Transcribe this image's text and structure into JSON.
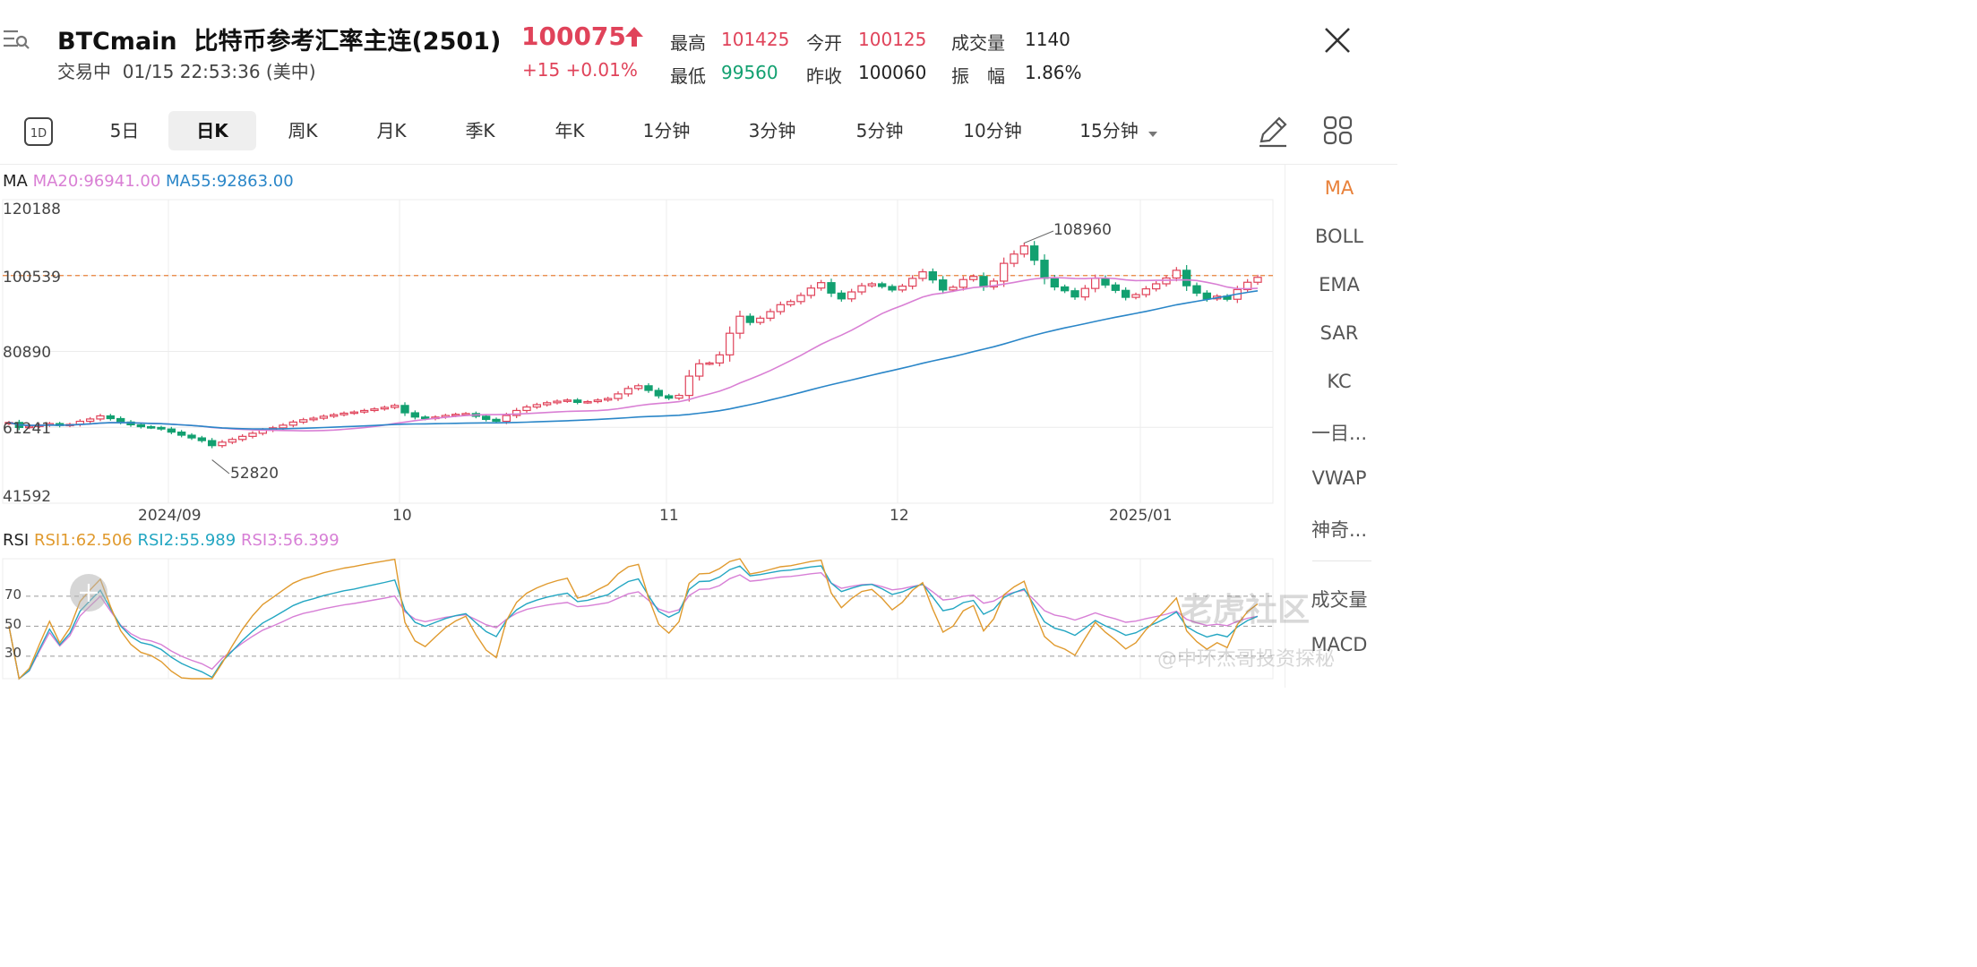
{
  "header": {
    "symbol": "BTCmain",
    "name": "比特币参考汇率主连(2501)",
    "price": "100075",
    "status": "交易中",
    "datetime": "01/15 22:53:36 (美中)",
    "change": "+15 +0.01%",
    "stats": {
      "high_label": "最高",
      "high": "101425",
      "open_label": "今开",
      "open": "100125",
      "volume_label": "成交量",
      "volume": "1140",
      "low_label": "最低",
      "low": "99560",
      "prev_close_label": "昨收",
      "prev_close": "100060",
      "amplitude_label": "振　幅",
      "amplitude": "1.86%"
    }
  },
  "tabs": [
    {
      "label": "1D",
      "icon": "calendar-1d-icon"
    },
    {
      "label": "5日"
    },
    {
      "label": "日K",
      "active": true
    },
    {
      "label": "周K"
    },
    {
      "label": "月K"
    },
    {
      "label": "季K"
    },
    {
      "label": "年K"
    },
    {
      "label": "1分钟"
    },
    {
      "label": "3分钟"
    },
    {
      "label": "5分钟"
    },
    {
      "label": "10分钟"
    },
    {
      "label": "15分钟"
    }
  ],
  "indicators_side": [
    "MA",
    "BOLL",
    "EMA",
    "SAR",
    "KC",
    "一目...",
    "VWAP",
    "神奇...",
    "成交量",
    "MACD"
  ],
  "ma_legend": {
    "prefix": "MA",
    "ma20": "MA20:96941.00",
    "ma55": "MA55:92863.00"
  },
  "rsi_legend": {
    "prefix": "RSI",
    "rsi1": "RSI1:62.506",
    "rsi2": "RSI2:55.989",
    "rsi3": "RSI3:56.399"
  },
  "price_axis": [
    "120188",
    "100539",
    "80890",
    "61241",
    "41592"
  ],
  "time_axis": [
    "2024/09",
    "10",
    "11",
    "12",
    "2025/01"
  ],
  "rsi_axis": [
    "70",
    "50",
    "30"
  ],
  "annotations": {
    "high_mark": "108960",
    "low_mark": "52820"
  },
  "watermark": {
    "brand": "老虎社区",
    "author": "@中环杰哥投资探秘"
  },
  "colors": {
    "up": "#e0435a",
    "down": "#12a070",
    "ma20": "#d97fd4",
    "ma55": "#2a86c8",
    "rsi1": "#e09a2e",
    "rsi2": "#23a6c2",
    "rsi3": "#d77fd6",
    "accent": "#e8813a"
  },
  "chart_data": [
    {
      "type": "candlestick",
      "title": "",
      "ylim": [
        41592,
        120188
      ],
      "y_ticks": [
        120188,
        100539,
        80890,
        61241,
        41592
      ],
      "x_ticks": [
        "2024/09",
        "10",
        "11",
        "12",
        "2025/01"
      ],
      "current_price_line": 100539,
      "closes": [
        62500,
        61200,
        61500,
        61800,
        62200,
        61700,
        62000,
        62800,
        63400,
        64200,
        63500,
        62600,
        61900,
        61400,
        61200,
        60800,
        60000,
        59200,
        58500,
        57800,
        56500,
        57400,
        58100,
        58900,
        59700,
        60500,
        61100,
        61800,
        62600,
        63200,
        63600,
        64100,
        64500,
        64900,
        65200,
        65600,
        66000,
        66400,
        66900,
        65000,
        63900,
        63500,
        63900,
        64300,
        64600,
        64800,
        64100,
        63300,
        62800,
        64300,
        65600,
        66500,
        67100,
        67600,
        68000,
        68300,
        67700,
        67900,
        68300,
        68700,
        69900,
        71300,
        72000,
        70800,
        69400,
        68800,
        69500,
        74500,
        77700,
        77900,
        80000,
        85600,
        90000,
        88400,
        89500,
        91200,
        93000,
        93800,
        95400,
        97300,
        98700,
        96000,
        94500,
        96300,
        97900,
        98400,
        97700,
        96800,
        97800,
        99800,
        101500,
        99400,
        96800,
        97500,
        99500,
        100300,
        97600,
        99100,
        103700,
        106100,
        108200,
        104500,
        99800,
        97600,
        96600,
        95000,
        97200,
        99800,
        98100,
        96700,
        94900,
        95600,
        97100,
        98400,
        99900,
        101900,
        97900,
        96000,
        94500,
        95200,
        94400,
        96900,
        98800,
        100075
      ],
      "x_start": "2024-08-14",
      "marked_high": 108960,
      "marked_low": 52820,
      "series": [
        {
          "name": "MA20",
          "last_value": 96941.0
        },
        {
          "name": "MA55",
          "last_value": 92863.0
        }
      ]
    },
    {
      "type": "line",
      "title": "",
      "ylim": [
        15,
        95
      ],
      "y_ticks": [
        70,
        50,
        30
      ],
      "series": [
        {
          "name": "RSI1",
          "last_value": 62.506
        },
        {
          "name": "RSI2",
          "last_value": 55.989
        },
        {
          "name": "RSI3",
          "last_value": 56.399
        }
      ]
    }
  ]
}
